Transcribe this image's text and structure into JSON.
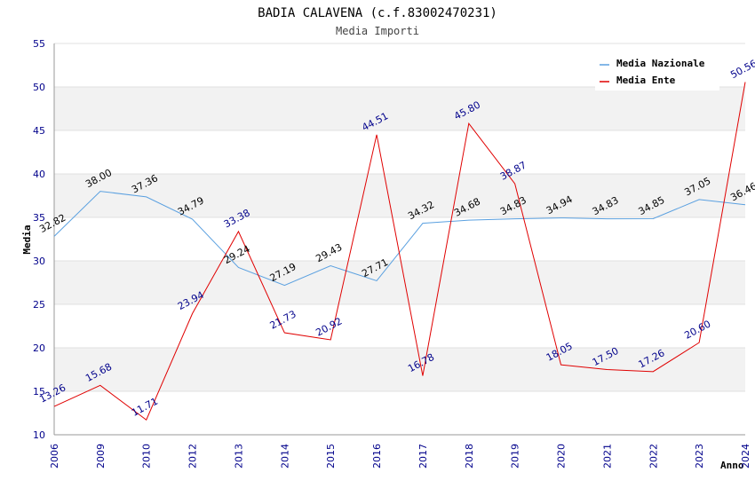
{
  "chart_data": {
    "type": "line",
    "title": "BADIA CALAVENA (c.f.83002470231)",
    "subtitle": "Media Importi",
    "xlabel": "Anno",
    "ylabel": "Media",
    "ylim": [
      10,
      55
    ],
    "yticks": [
      "10",
      "15",
      "20",
      "25",
      "30",
      "35",
      "40",
      "45",
      "50",
      "55"
    ],
    "categories": [
      "2006",
      "2009",
      "2010",
      "2012",
      "2013",
      "2014",
      "2015",
      "2016",
      "2017",
      "2018",
      "2019",
      "2020",
      "2021",
      "2022",
      "2023",
      "2024"
    ],
    "series": [
      {
        "name": "Media Nazionale",
        "color": "#5aa0e0",
        "values": [
          32.82,
          38.0,
          37.36,
          34.79,
          29.24,
          27.19,
          29.43,
          27.71,
          34.32,
          34.68,
          34.83,
          34.94,
          34.83,
          34.85,
          37.05,
          36.46
        ],
        "labels": [
          "32.82",
          "38.00",
          "37.36",
          "34.79",
          "29.24",
          "27.19",
          "29.43",
          "27.71",
          "34.32",
          "34.68",
          "34.83",
          "34.94",
          "34.83",
          "34.85",
          "37.05",
          "36.46"
        ]
      },
      {
        "name": "Media Ente",
        "color": "#e00000",
        "values": [
          13.26,
          15.68,
          11.71,
          23.94,
          33.38,
          21.73,
          20.92,
          44.51,
          16.78,
          45.8,
          38.87,
          18.05,
          17.5,
          17.26,
          20.6,
          50.56
        ],
        "labels": [
          "13.26",
          "15.68",
          "11.71",
          "23.94",
          "33.38",
          "21.73",
          "20.92",
          "44.51",
          "16.78",
          "45.80",
          "38.87",
          "18.05",
          "17.50",
          "17.26",
          "20.60",
          "50.56"
        ]
      }
    ],
    "grid": true,
    "legend": "top-right"
  }
}
